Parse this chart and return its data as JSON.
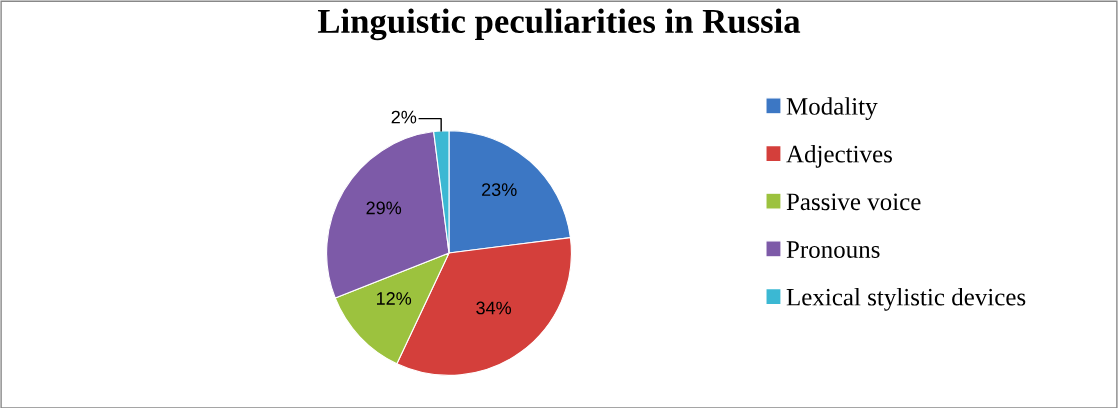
{
  "chart_data": {
    "type": "pie",
    "title": "Linguistic peculiarities in Russia",
    "categories": [
      "Modality",
      "Adjectives",
      "Passive voice",
      "Pronouns",
      "Lexical stylistic devices"
    ],
    "values": [
      23,
      34,
      12,
      29,
      2
    ],
    "colors": [
      "#3c77c4",
      "#d43f3b",
      "#9cc23e",
      "#7d5aa8",
      "#3bb8d3"
    ],
    "value_labels": [
      "23%",
      "34%",
      "12%",
      "29%",
      "2%"
    ],
    "legend": "right"
  }
}
